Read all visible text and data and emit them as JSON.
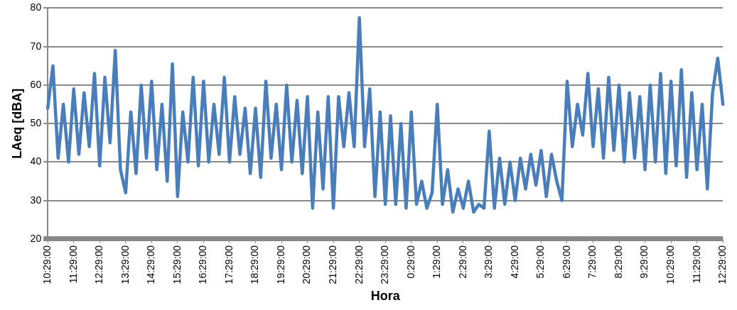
{
  "chart_data": {
    "type": "line",
    "xlabel": "Hora",
    "ylabel": "LAeq [dBA]",
    "categories": [
      "10:29:00",
      null,
      null,
      null,
      null,
      "11:29:00",
      null,
      null,
      null,
      null,
      "12:29:00",
      null,
      null,
      null,
      null,
      "13:29:00",
      null,
      null,
      null,
      null,
      "14:29:00",
      null,
      null,
      null,
      null,
      "15:29:00",
      null,
      null,
      null,
      null,
      "16:29:00",
      null,
      null,
      null,
      null,
      "17:29:00",
      null,
      null,
      null,
      null,
      "18:29:00",
      null,
      null,
      null,
      null,
      "19:29:00",
      null,
      null,
      null,
      null,
      "20:29:00",
      null,
      null,
      null,
      null,
      "21:29:00",
      null,
      null,
      null,
      null,
      "22:29:00",
      null,
      null,
      null,
      null,
      "23:29:00",
      null,
      null,
      null,
      null,
      "0:29:00",
      null,
      null,
      null,
      null,
      "1:29:00",
      null,
      null,
      null,
      null,
      "2:29:00",
      null,
      null,
      null,
      null,
      "3:29:00",
      null,
      null,
      null,
      null,
      "4:29:00",
      null,
      null,
      null,
      null,
      "5:29:00",
      null,
      null,
      null,
      null,
      "6:29:00",
      null,
      null,
      null,
      null,
      "7:29:00",
      null,
      null,
      null,
      null,
      "8:29:00",
      null,
      null,
      null,
      null,
      "9:29:00",
      null,
      null,
      null,
      null,
      "10:29:00",
      null,
      null,
      null,
      null,
      "11:29:00",
      null,
      null,
      null,
      null,
      "12:29:00"
    ],
    "series": [
      {
        "color": "#4a7ebb",
        "values": [
          54,
          65,
          41,
          55,
          40,
          59,
          42,
          58,
          44,
          63,
          39,
          62,
          45,
          69,
          38,
          32,
          53,
          37,
          60,
          41,
          61,
          38,
          55,
          35,
          65.5,
          31,
          53,
          40,
          62,
          39,
          61,
          40,
          55,
          42,
          62,
          40,
          57,
          42,
          54,
          37,
          54,
          36,
          61,
          41,
          55,
          38,
          60,
          40,
          56,
          37,
          57,
          28,
          53,
          33,
          57,
          28,
          57,
          44,
          58,
          44,
          77.5,
          44,
          59,
          31,
          53,
          29,
          52,
          29,
          50,
          28,
          53,
          29,
          35,
          28,
          32,
          55,
          29,
          38,
          27,
          33,
          28,
          35,
          27,
          29,
          28,
          48,
          28,
          41,
          29,
          40,
          30,
          41,
          33,
          42,
          34,
          43,
          31,
          42,
          35,
          30,
          61,
          44,
          55,
          47,
          63,
          44,
          59,
          41,
          62,
          43,
          60,
          40,
          58,
          41,
          57,
          38,
          60,
          40,
          63,
          37,
          61,
          39,
          64,
          36,
          58,
          38,
          55,
          33,
          58,
          67,
          55
        ]
      }
    ],
    "ylim": [
      20,
      80
    ],
    "yticks": [
      20,
      30,
      40,
      50,
      60,
      70,
      80
    ],
    "grid": "y",
    "legend": false,
    "marker": "none",
    "line_style": "solid"
  }
}
